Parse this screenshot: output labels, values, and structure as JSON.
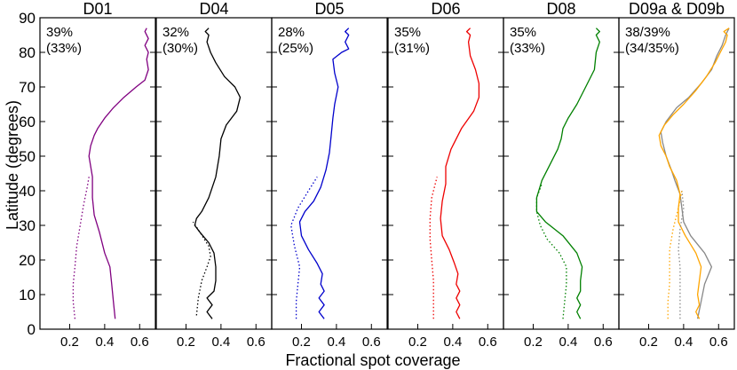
{
  "figure": {
    "ylabel": "Latitude (degrees)",
    "xlabel": "Fractional spot coverage",
    "y_ticks": [
      "0",
      "10",
      "20",
      "30",
      "40",
      "50",
      "60",
      "70",
      "80",
      "90"
    ],
    "x_ticks": [
      "0.2",
      "0.4",
      "0.6"
    ]
  },
  "chart_data": [
    {
      "type": "line",
      "title": "D01",
      "annotation": [
        "39%",
        "(33%)"
      ],
      "xlim": [
        0.03,
        0.69
      ],
      "ylim": [
        0,
        90
      ],
      "series": [
        {
          "name": "solid",
          "style": "solid",
          "color": "#800080",
          "points": [
            [
              0.46,
              3
            ],
            [
              0.45,
              8
            ],
            [
              0.44,
              13
            ],
            [
              0.43,
              18
            ],
            [
              0.4,
              22
            ],
            [
              0.37,
              28
            ],
            [
              0.34,
              33
            ],
            [
              0.33,
              38
            ],
            [
              0.33,
              44
            ],
            [
              0.31,
              50
            ],
            [
              0.32,
              53
            ],
            [
              0.34,
              56
            ],
            [
              0.36,
              58
            ],
            [
              0.4,
              61
            ],
            [
              0.45,
              64
            ],
            [
              0.51,
              67
            ],
            [
              0.58,
              70
            ],
            [
              0.63,
              72
            ],
            [
              0.65,
              75
            ],
            [
              0.64,
              78
            ],
            [
              0.65,
              80
            ],
            [
              0.63,
              82
            ],
            [
              0.65,
              84
            ],
            [
              0.63,
              86
            ],
            [
              0.64,
              87
            ]
          ]
        },
        {
          "name": "dotted",
          "style": "dotted",
          "color": "#800080",
          "points": [
            [
              0.23,
              3
            ],
            [
              0.22,
              8
            ],
            [
              0.22,
              13
            ],
            [
              0.23,
              18
            ],
            [
              0.24,
              24
            ],
            [
              0.26,
              30
            ],
            [
              0.28,
              36
            ],
            [
              0.3,
              41
            ],
            [
              0.31,
              44
            ]
          ]
        }
      ]
    },
    {
      "type": "line",
      "title": "D04",
      "annotation": [
        "32%",
        "(30%)"
      ],
      "xlim": [
        0.03,
        0.69
      ],
      "ylim": [
        0,
        90
      ],
      "series": [
        {
          "name": "solid",
          "style": "solid",
          "color": "#000000",
          "points": [
            [
              0.35,
              3
            ],
            [
              0.32,
              5
            ],
            [
              0.35,
              7
            ],
            [
              0.32,
              9
            ],
            [
              0.36,
              11
            ],
            [
              0.37,
              14
            ],
            [
              0.37,
              18
            ],
            [
              0.36,
              22
            ],
            [
              0.33,
              25
            ],
            [
              0.28,
              28
            ],
            [
              0.25,
              30
            ],
            [
              0.26,
              32
            ],
            [
              0.29,
              34
            ],
            [
              0.33,
              38
            ],
            [
              0.37,
              44
            ],
            [
              0.39,
              50
            ],
            [
              0.4,
              55
            ],
            [
              0.43,
              59
            ],
            [
              0.49,
              63
            ],
            [
              0.51,
              67
            ],
            [
              0.48,
              70
            ],
            [
              0.42,
              73
            ],
            [
              0.37,
              77
            ],
            [
              0.34,
              80
            ],
            [
              0.32,
              83
            ],
            [
              0.33,
              85
            ],
            [
              0.31,
              86
            ],
            [
              0.33,
              87
            ]
          ]
        },
        {
          "name": "dotted",
          "style": "dotted",
          "color": "#000000",
          "points": [
            [
              0.26,
              4
            ],
            [
              0.27,
              9
            ],
            [
              0.29,
              14
            ],
            [
              0.32,
              18
            ],
            [
              0.34,
              21
            ],
            [
              0.33,
              24
            ],
            [
              0.28,
              28
            ],
            [
              0.24,
              31
            ]
          ]
        }
      ]
    },
    {
      "type": "line",
      "title": "D05",
      "annotation": [
        "28%",
        "(25%)"
      ],
      "xlim": [
        0.03,
        0.69
      ],
      "ylim": [
        0,
        90
      ],
      "series": [
        {
          "name": "solid",
          "style": "solid",
          "color": "#0000cc",
          "points": [
            [
              0.33,
              3
            ],
            [
              0.3,
              5
            ],
            [
              0.33,
              7
            ],
            [
              0.3,
              9
            ],
            [
              0.33,
              11
            ],
            [
              0.31,
              13
            ],
            [
              0.32,
              16
            ],
            [
              0.29,
              19
            ],
            [
              0.24,
              23
            ],
            [
              0.2,
              27
            ],
            [
              0.19,
              31
            ],
            [
              0.22,
              34
            ],
            [
              0.27,
              37
            ],
            [
              0.31,
              41
            ],
            [
              0.34,
              46
            ],
            [
              0.36,
              51
            ],
            [
              0.37,
              56
            ],
            [
              0.38,
              61
            ],
            [
              0.39,
              65
            ],
            [
              0.41,
              70
            ],
            [
              0.39,
              74
            ],
            [
              0.38,
              78
            ],
            [
              0.43,
              80
            ],
            [
              0.47,
              81
            ],
            [
              0.45,
              83
            ],
            [
              0.47,
              85
            ],
            [
              0.45,
              86
            ],
            [
              0.47,
              87
            ]
          ]
        },
        {
          "name": "dotted",
          "style": "dotted",
          "color": "#0000cc",
          "points": [
            [
              0.17,
              3
            ],
            [
              0.17,
              8
            ],
            [
              0.18,
              13
            ],
            [
              0.19,
              18
            ],
            [
              0.16,
              24
            ],
            [
              0.14,
              30
            ],
            [
              0.18,
              35
            ],
            [
              0.24,
              40
            ],
            [
              0.29,
              44
            ]
          ]
        }
      ]
    },
    {
      "type": "line",
      "title": "D06",
      "annotation": [
        "35%",
        "(31%)"
      ],
      "xlim": [
        0.03,
        0.69
      ],
      "ylim": [
        0,
        90
      ],
      "series": [
        {
          "name": "solid",
          "style": "solid",
          "color": "#ee0000",
          "points": [
            [
              0.44,
              3
            ],
            [
              0.42,
              5
            ],
            [
              0.44,
              7
            ],
            [
              0.42,
              9
            ],
            [
              0.44,
              11
            ],
            [
              0.42,
              13
            ],
            [
              0.43,
              16
            ],
            [
              0.41,
              19
            ],
            [
              0.38,
              23
            ],
            [
              0.34,
              27
            ],
            [
              0.33,
              32
            ],
            [
              0.34,
              37
            ],
            [
              0.36,
              42
            ],
            [
              0.36,
              47
            ],
            [
              0.39,
              52
            ],
            [
              0.45,
              58
            ],
            [
              0.52,
              63
            ],
            [
              0.55,
              67
            ],
            [
              0.55,
              71
            ],
            [
              0.53,
              75
            ],
            [
              0.5,
              79
            ],
            [
              0.49,
              83
            ],
            [
              0.5,
              85
            ],
            [
              0.48,
              86
            ],
            [
              0.5,
              87
            ]
          ]
        },
        {
          "name": "dotted",
          "style": "dotted",
          "color": "#ee0000",
          "points": [
            [
              0.29,
              3
            ],
            [
              0.29,
              8
            ],
            [
              0.29,
              14
            ],
            [
              0.28,
              20
            ],
            [
              0.27,
              26
            ],
            [
              0.27,
              32
            ],
            [
              0.28,
              38
            ],
            [
              0.31,
              44
            ]
          ]
        }
      ]
    },
    {
      "type": "line",
      "title": "D08",
      "annotation": [
        "35%",
        "(33%)"
      ],
      "xlim": [
        0.03,
        0.69
      ],
      "ylim": [
        0,
        90
      ],
      "series": [
        {
          "name": "solid",
          "style": "solid",
          "color": "#008000",
          "points": [
            [
              0.47,
              3
            ],
            [
              0.45,
              5
            ],
            [
              0.47,
              7
            ],
            [
              0.45,
              9
            ],
            [
              0.47,
              11
            ],
            [
              0.47,
              14
            ],
            [
              0.48,
              18
            ],
            [
              0.45,
              22
            ],
            [
              0.37,
              27
            ],
            [
              0.27,
              31
            ],
            [
              0.22,
              34
            ],
            [
              0.22,
              38
            ],
            [
              0.25,
              43
            ],
            [
              0.3,
              48
            ],
            [
              0.34,
              52
            ],
            [
              0.36,
              55
            ],
            [
              0.37,
              58
            ],
            [
              0.4,
              61
            ],
            [
              0.45,
              65
            ],
            [
              0.5,
              70
            ],
            [
              0.55,
              75
            ],
            [
              0.56,
              80
            ],
            [
              0.58,
              83
            ],
            [
              0.56,
              85
            ],
            [
              0.58,
              86
            ],
            [
              0.56,
              87
            ]
          ]
        },
        {
          "name": "dotted",
          "style": "dotted",
          "color": "#008000",
          "points": [
            [
              0.37,
              3
            ],
            [
              0.38,
              8
            ],
            [
              0.39,
              13
            ],
            [
              0.39,
              18
            ],
            [
              0.35,
              22
            ],
            [
              0.28,
              26
            ],
            [
              0.24,
              30
            ],
            [
              0.22,
              34
            ],
            [
              0.22,
              38
            ],
            [
              0.25,
              42
            ]
          ]
        }
      ]
    },
    {
      "type": "line",
      "title": "D09a & D09b",
      "annotation": [
        "38/39%",
        "(34/35%)"
      ],
      "xlim": [
        0.03,
        0.69
      ],
      "ylim": [
        0,
        90
      ],
      "series": [
        {
          "name": "D09a solid",
          "style": "solid",
          "color": "#888888",
          "points": [
            [
              0.48,
              3
            ],
            [
              0.5,
              8
            ],
            [
              0.52,
              13
            ],
            [
              0.56,
              18
            ],
            [
              0.52,
              22
            ],
            [
              0.44,
              27
            ],
            [
              0.4,
              31
            ],
            [
              0.39,
              35
            ],
            [
              0.38,
              39
            ],
            [
              0.35,
              43
            ],
            [
              0.33,
              46
            ],
            [
              0.3,
              50
            ],
            [
              0.28,
              54
            ],
            [
              0.27,
              57
            ],
            [
              0.3,
              60
            ],
            [
              0.36,
              64
            ],
            [
              0.43,
              67
            ],
            [
              0.5,
              71
            ],
            [
              0.56,
              75
            ],
            [
              0.59,
              79
            ],
            [
              0.62,
              82
            ],
            [
              0.64,
              85
            ],
            [
              0.66,
              87
            ]
          ]
        },
        {
          "name": "D09b solid",
          "style": "solid",
          "color": "#ffa500",
          "points": [
            [
              0.49,
              3
            ],
            [
              0.47,
              5
            ],
            [
              0.49,
              7
            ],
            [
              0.48,
              10
            ],
            [
              0.49,
              14
            ],
            [
              0.5,
              18
            ],
            [
              0.47,
              22
            ],
            [
              0.41,
              27
            ],
            [
              0.37,
              31
            ],
            [
              0.37,
              35
            ],
            [
              0.38,
              39
            ],
            [
              0.36,
              43
            ],
            [
              0.32,
              47
            ],
            [
              0.3,
              50
            ],
            [
              0.27,
              53
            ],
            [
              0.26,
              56
            ],
            [
              0.29,
              59
            ],
            [
              0.34,
              62
            ],
            [
              0.4,
              65
            ],
            [
              0.47,
              69
            ],
            [
              0.53,
              73
            ],
            [
              0.58,
              77
            ],
            [
              0.61,
              80
            ],
            [
              0.64,
              83
            ],
            [
              0.65,
              85
            ],
            [
              0.63,
              86
            ],
            [
              0.66,
              87
            ]
          ]
        },
        {
          "name": "D09a dotted",
          "style": "dotted",
          "color": "#888888",
          "points": [
            [
              0.38,
              3
            ],
            [
              0.38,
              8
            ],
            [
              0.38,
              13
            ],
            [
              0.38,
              18
            ],
            [
              0.37,
              23
            ],
            [
              0.38,
              29
            ],
            [
              0.4,
              35
            ],
            [
              0.39,
              40
            ]
          ]
        },
        {
          "name": "D09b dotted",
          "style": "dotted",
          "color": "#ffa500",
          "points": [
            [
              0.31,
              3
            ],
            [
              0.31,
              8
            ],
            [
              0.32,
              13
            ],
            [
              0.32,
              18
            ],
            [
              0.32,
              23
            ],
            [
              0.34,
              29
            ],
            [
              0.37,
              35
            ],
            [
              0.39,
              40
            ]
          ]
        }
      ]
    }
  ]
}
